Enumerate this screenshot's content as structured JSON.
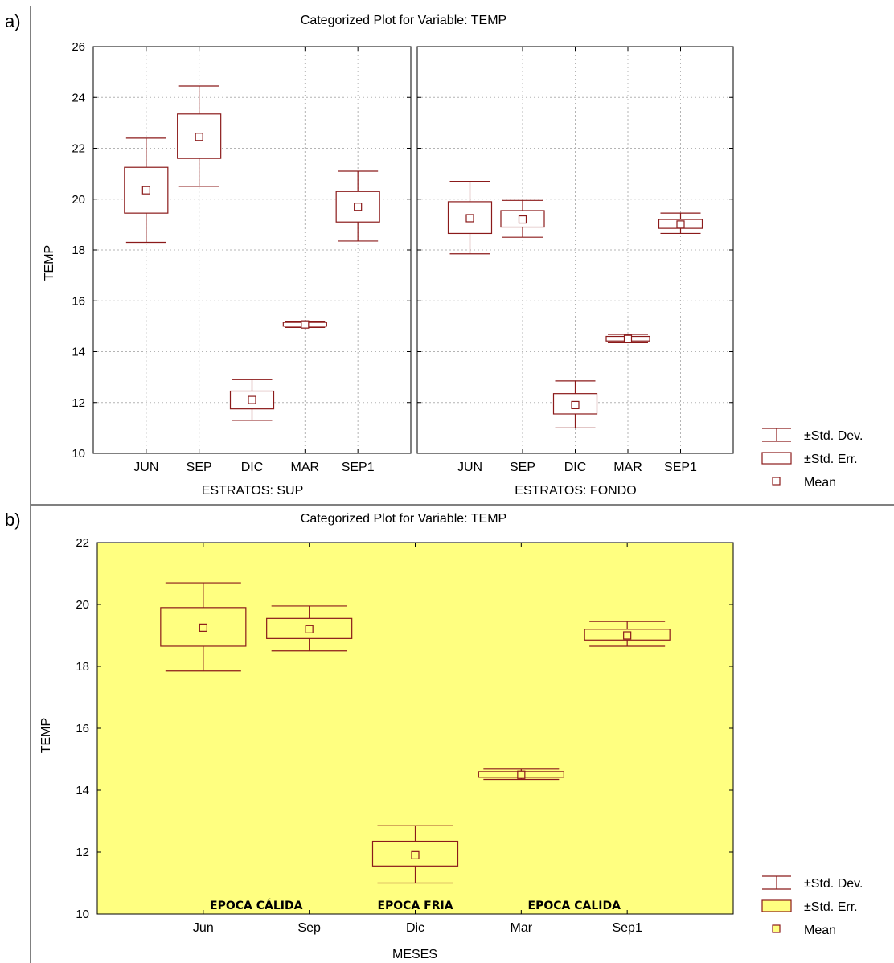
{
  "colors": {
    "box_stroke": "#8b1a1a",
    "panel_b_background": "#ffff80",
    "grid": "#b4b4b4",
    "frame": "#000000"
  },
  "chart_data": [
    {
      "panel_label": "a)",
      "type": "boxplot",
      "title": "Categorized Plot for Variable: TEMP",
      "ylabel": "TEMP",
      "ylim": [
        10,
        26
      ],
      "yticks": [
        10,
        12,
        14,
        16,
        18,
        20,
        22,
        24,
        26
      ],
      "grid": true,
      "legend_placement": "right",
      "legend": [
        "±Std. Dev.",
        "±Std. Err.",
        "Mean"
      ],
      "categories": [
        "JUN",
        "SEP",
        "DIC",
        "MAR",
        "SEP1"
      ],
      "panels": [
        {
          "xlabel": "ESTRATOS: SUP",
          "series": [
            {
              "category": "JUN",
              "mean": 20.35,
              "se_low": 19.45,
              "se_high": 21.25,
              "sd_low": 18.3,
              "sd_high": 22.4
            },
            {
              "category": "SEP",
              "mean": 22.45,
              "se_low": 21.6,
              "se_high": 23.35,
              "sd_low": 20.5,
              "sd_high": 24.45
            },
            {
              "category": "DIC",
              "mean": 12.1,
              "se_low": 11.75,
              "se_high": 12.45,
              "sd_low": 11.3,
              "sd_high": 12.9
            },
            {
              "category": "MAR",
              "mean": 15.07,
              "se_low": 15.0,
              "se_high": 15.15,
              "sd_low": 14.95,
              "sd_high": 15.2
            },
            {
              "category": "SEP1",
              "mean": 19.7,
              "se_low": 19.1,
              "se_high": 20.3,
              "sd_low": 18.35,
              "sd_high": 21.1
            }
          ]
        },
        {
          "xlabel": "ESTRATOS: FONDO",
          "series": [
            {
              "category": "JUN",
              "mean": 19.25,
              "se_low": 18.65,
              "se_high": 19.9,
              "sd_low": 17.85,
              "sd_high": 20.7
            },
            {
              "category": "SEP",
              "mean": 19.2,
              "se_low": 18.9,
              "se_high": 19.55,
              "sd_low": 18.5,
              "sd_high": 19.95
            },
            {
              "category": "DIC",
              "mean": 11.9,
              "se_low": 11.55,
              "se_high": 12.35,
              "sd_low": 11.0,
              "sd_high": 12.85
            },
            {
              "category": "MAR",
              "mean": 14.5,
              "se_low": 14.42,
              "se_high": 14.6,
              "sd_low": 14.35,
              "sd_high": 14.68
            },
            {
              "category": "SEP1",
              "mean": 19.0,
              "se_low": 18.85,
              "se_high": 19.2,
              "sd_low": 18.65,
              "sd_high": 19.45
            }
          ]
        }
      ]
    },
    {
      "panel_label": "b)",
      "type": "boxplot",
      "title": "Categorized Plot for Variable: TEMP",
      "ylabel": "TEMP",
      "xlabel": "MESES",
      "ylim": [
        10,
        22
      ],
      "yticks": [
        10,
        12,
        14,
        16,
        18,
        20,
        22
      ],
      "grid": false,
      "legend_placement": "right",
      "legend": [
        "±Std. Dev.",
        "±Std. Err.",
        "Mean"
      ],
      "categories": [
        "Jun",
        "Sep",
        "Dic",
        "Mar",
        "Sep1"
      ],
      "annotations": [
        {
          "text": "EPOCA CÁLIDA",
          "at_category": 0.5
        },
        {
          "text": "EPOCA FRIA",
          "at_category": 2
        },
        {
          "text": "EPOCA CALIDA",
          "at_category": 3.5
        }
      ],
      "series": [
        {
          "category": "Jun",
          "mean": 19.25,
          "se_low": 18.65,
          "se_high": 19.9,
          "sd_low": 17.85,
          "sd_high": 20.7
        },
        {
          "category": "Sep",
          "mean": 19.2,
          "se_low": 18.9,
          "se_high": 19.55,
          "sd_low": 18.5,
          "sd_high": 19.95
        },
        {
          "category": "Dic",
          "mean": 11.9,
          "se_low": 11.55,
          "se_high": 12.35,
          "sd_low": 11.0,
          "sd_high": 12.85
        },
        {
          "category": "Mar",
          "mean": 14.5,
          "se_low": 14.42,
          "se_high": 14.6,
          "sd_low": 14.35,
          "sd_high": 14.68
        },
        {
          "category": "Sep1",
          "mean": 19.0,
          "se_low": 18.85,
          "se_high": 19.2,
          "sd_low": 18.65,
          "sd_high": 19.45
        }
      ]
    }
  ]
}
